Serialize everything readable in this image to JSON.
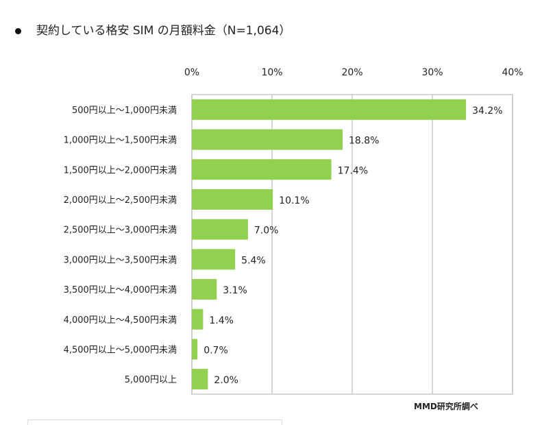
{
  "chart_data": {
    "type": "bar",
    "orientation": "horizontal",
    "title": "契約している格安 SIM の月額料金（N=1,064）",
    "categories": [
      "500円以上～1,000円未満",
      "1,000円以上～1,500円未満",
      "1,500円以上～2,000円未満",
      "2,000円以上～2,500円未満",
      "2,500円以上～3,000円未満",
      "3,000円以上～3,500円未満",
      "3,500円以上～4,000円未満",
      "4,000円以上～4,500円未満",
      "4,500円以上～5,000円未満",
      "5,000円以上"
    ],
    "values": [
      34.2,
      18.8,
      17.4,
      10.1,
      7.0,
      5.4,
      3.1,
      1.4,
      0.7,
      2.0
    ],
    "value_labels": [
      "34.2%",
      "18.8%",
      "17.4%",
      "10.1%",
      "7.0%",
      "5.4%",
      "3.1%",
      "1.4%",
      "0.7%",
      "2.0%"
    ],
    "xlim": [
      0,
      40
    ],
    "xticks": [
      0,
      10,
      20,
      30,
      40
    ],
    "xtick_labels": [
      "0%",
      "10%",
      "20%",
      "30%",
      "40%"
    ],
    "xaxis_position": "top",
    "grid": true,
    "bar_color": "#92d050",
    "source": "MMD研究所調べ"
  }
}
